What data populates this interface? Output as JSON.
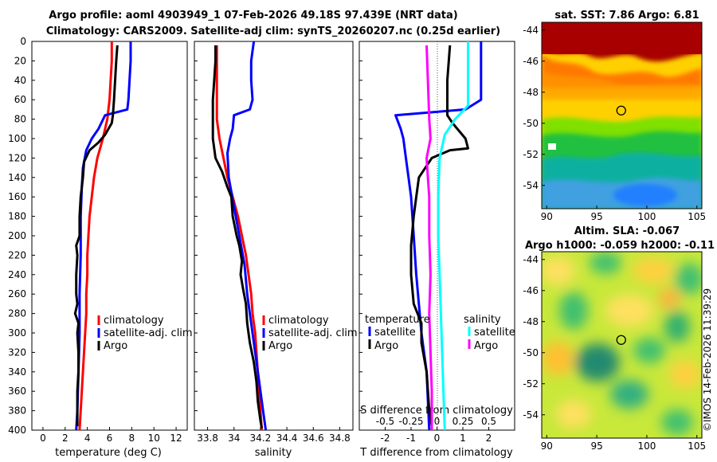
{
  "header": {
    "title_line1": "Argo profile: aoml 4903949_1 07-Feb-2026 49.18S 97.439E (NRT data)",
    "title_line2": "Climatology: CARS2009. Satellite-adj clim: synTS_20260207.nc (0.25d earlier)"
  },
  "credit": "©IMOS 14-Feb-2026 11:39:29",
  "colors": {
    "climatology": "#ff0000",
    "satellite": "#0000ff",
    "argo": "#000000",
    "sal_sat": "#00ffff",
    "sal_argo": "#ff00ff"
  },
  "chart_data": [
    {
      "type": "line",
      "title": "",
      "xlabel": "temperature (deg C)",
      "ylabel": "",
      "xlim": [
        -1,
        13
      ],
      "ylim": [
        400,
        0
      ],
      "xticks": [
        "0",
        "2",
        "4",
        "6",
        "8",
        "10",
        "12"
      ],
      "yticks": [
        "0",
        "20",
        "40",
        "60",
        "80",
        "100",
        "120",
        "140",
        "160",
        "180",
        "200",
        "220",
        "240",
        "260",
        "280",
        "300",
        "320",
        "340",
        "360",
        "380",
        "400"
      ],
      "legend": [
        "climatology",
        "satellite-adj. clim",
        "Argo"
      ],
      "series": [
        {
          "name": "climatology",
          "color": "#ff0000",
          "points": [
            [
              6.2,
              0
            ],
            [
              6.2,
              20
            ],
            [
              6.1,
              40
            ],
            [
              6.0,
              60
            ],
            [
              5.8,
              80
            ],
            [
              5.4,
              100
            ],
            [
              4.9,
              120
            ],
            [
              4.6,
              140
            ],
            [
              4.4,
              160
            ],
            [
              4.2,
              180
            ],
            [
              4.1,
              200
            ],
            [
              4.0,
              220
            ],
            [
              4.0,
              240
            ],
            [
              3.9,
              260
            ],
            [
              3.9,
              280
            ],
            [
              3.8,
              300
            ],
            [
              3.7,
              320
            ],
            [
              3.6,
              340
            ],
            [
              3.5,
              360
            ],
            [
              3.4,
              380
            ],
            [
              3.3,
              400
            ]
          ]
        },
        {
          "name": "satellite-adj. clim",
          "color": "#0000ff",
          "points": [
            [
              7.9,
              0
            ],
            [
              7.9,
              20
            ],
            [
              7.8,
              40
            ],
            [
              7.7,
              60
            ],
            [
              7.6,
              70
            ],
            [
              5.6,
              76
            ],
            [
              5.0,
              90
            ],
            [
              4.4,
              100
            ],
            [
              3.9,
              112
            ],
            [
              3.6,
              130
            ],
            [
              3.5,
              150
            ],
            [
              3.4,
              180
            ],
            [
              3.4,
              220
            ],
            [
              3.3,
              260
            ],
            [
              3.3,
              300
            ],
            [
              3.2,
              340
            ],
            [
              3.1,
              380
            ],
            [
              3.0,
              400
            ]
          ]
        },
        {
          "name": "Argo",
          "color": "#000000",
          "points": [
            [
              6.7,
              4
            ],
            [
              6.6,
              20
            ],
            [
              6.5,
              40
            ],
            [
              6.4,
              60
            ],
            [
              6.3,
              76
            ],
            [
              6.2,
              84
            ],
            [
              5.6,
              96
            ],
            [
              5.0,
              104
            ],
            [
              4.2,
              112
            ],
            [
              3.7,
              124
            ],
            [
              3.6,
              140
            ],
            [
              3.4,
              160
            ],
            [
              3.3,
              180
            ],
            [
              3.3,
              200
            ],
            [
              3.0,
              210
            ],
            [
              3.1,
              220
            ],
            [
              3.0,
              240
            ],
            [
              3.0,
              260
            ],
            [
              3.1,
              270
            ],
            [
              2.9,
              280
            ],
            [
              3.2,
              290
            ],
            [
              3.1,
              300
            ],
            [
              3.2,
              320
            ],
            [
              3.2,
              340
            ],
            [
              3.1,
              360
            ],
            [
              3.1,
              380
            ],
            [
              3.1,
              396
            ]
          ]
        }
      ]
    },
    {
      "type": "line",
      "title": "",
      "xlabel": "salinity",
      "ylabel": "",
      "xlim": [
        33.7,
        34.9
      ],
      "ylim": [
        400,
        0
      ],
      "xticks": [
        "33.8",
        "34",
        "34.2",
        "34.4",
        "34.6",
        "34.8"
      ],
      "legend": [
        "climatology",
        "satellite-adj. clim",
        "Argo"
      ],
      "series": [
        {
          "name": "climatology",
          "color": "#ff0000",
          "points": [
            [
              33.87,
              4
            ],
            [
              33.87,
              40
            ],
            [
              33.87,
              80
            ],
            [
              33.89,
              100
            ],
            [
              33.92,
              120
            ],
            [
              33.95,
              140
            ],
            [
              33.99,
              160
            ],
            [
              34.03,
              180
            ],
            [
              34.06,
              200
            ],
            [
              34.09,
              220
            ],
            [
              34.11,
              240
            ],
            [
              34.13,
              260
            ],
            [
              34.14,
              280
            ],
            [
              34.16,
              300
            ],
            [
              34.17,
              320
            ],
            [
              34.18,
              340
            ],
            [
              34.19,
              360
            ],
            [
              34.2,
              380
            ],
            [
              34.21,
              400
            ]
          ]
        },
        {
          "name": "satellite-adj. clim",
          "color": "#0000ff",
          "points": [
            [
              34.15,
              0
            ],
            [
              34.13,
              20
            ],
            [
              34.13,
              40
            ],
            [
              34.14,
              60
            ],
            [
              34.12,
              70
            ],
            [
              34.0,
              76
            ],
            [
              33.99,
              90
            ],
            [
              33.97,
              100
            ],
            [
              33.95,
              115
            ],
            [
              33.96,
              140
            ],
            [
              34.0,
              170
            ],
            [
              34.04,
              200
            ],
            [
              34.08,
              230
            ],
            [
              34.1,
              260
            ],
            [
              34.13,
              290
            ],
            [
              34.16,
              320
            ],
            [
              34.19,
              350
            ],
            [
              34.22,
              380
            ],
            [
              34.24,
              400
            ]
          ]
        },
        {
          "name": "Argo",
          "color": "#000000",
          "points": [
            [
              33.86,
              4
            ],
            [
              33.86,
              20
            ],
            [
              33.85,
              40
            ],
            [
              33.84,
              60
            ],
            [
              33.84,
              80
            ],
            [
              33.84,
              100
            ],
            [
              33.86,
              120
            ],
            [
              33.91,
              134
            ],
            [
              33.95,
              150
            ],
            [
              33.98,
              160
            ],
            [
              33.99,
              180
            ],
            [
              34.02,
              200
            ],
            [
              34.04,
              210
            ],
            [
              34.06,
              226
            ],
            [
              34.05,
              240
            ],
            [
              34.07,
              256
            ],
            [
              34.09,
              270
            ],
            [
              34.1,
              290
            ],
            [
              34.12,
              310
            ],
            [
              34.15,
              330
            ],
            [
              34.17,
              350
            ],
            [
              34.18,
              370
            ],
            [
              34.2,
              390
            ],
            [
              34.21,
              398
            ]
          ]
        }
      ]
    },
    {
      "type": "line",
      "title": "",
      "xlabel": "T difference from climatology",
      "xlabel2": "S difference from climatology",
      "ylabel": "",
      "xlim": [
        -3,
        3
      ],
      "xticks": [
        "-2",
        "-1",
        "0",
        "1",
        "2"
      ],
      "xticks2": [
        "-0.5",
        "-0.25",
        "0",
        "0.25",
        "0.5"
      ],
      "legend_temp_title": "temperature",
      "legend_sal_title": "salinity",
      "legend": [
        "satellite",
        "Argo",
        "satellite",
        "Argo"
      ],
      "series": [
        {
          "name": "T satellite",
          "color": "#0000ff",
          "points": [
            [
              1.7,
              0
            ],
            [
              1.7,
              20
            ],
            [
              1.7,
              40
            ],
            [
              1.7,
              60
            ],
            [
              1.1,
              70
            ],
            [
              -1.6,
              76
            ],
            [
              -1.4,
              90
            ],
            [
              -1.3,
              100
            ],
            [
              -1.2,
              120
            ],
            [
              -1.1,
              140
            ],
            [
              -1.0,
              160
            ],
            [
              -0.9,
              200
            ],
            [
              -0.8,
              240
            ],
            [
              -0.6,
              300
            ],
            [
              -0.4,
              340
            ],
            [
              -0.3,
              400
            ]
          ]
        },
        {
          "name": "T Argo",
          "color": "#000000",
          "points": [
            [
              0.5,
              4
            ],
            [
              0.4,
              40
            ],
            [
              0.4,
              76
            ],
            [
              0.6,
              84
            ],
            [
              1.1,
              100
            ],
            [
              1.2,
              110
            ],
            [
              0.5,
              112
            ],
            [
              -0.2,
              120
            ],
            [
              -0.7,
              140
            ],
            [
              -0.8,
              160
            ],
            [
              -0.9,
              180
            ],
            [
              -1.0,
              210
            ],
            [
              -1.0,
              240
            ],
            [
              -0.9,
              270
            ],
            [
              -0.6,
              290
            ],
            [
              -0.6,
              310
            ],
            [
              -0.4,
              340
            ],
            [
              -0.3,
              380
            ],
            [
              -0.2,
              396
            ]
          ]
        },
        {
          "name": "S satellite",
          "color": "#00ffff",
          "points": [
            [
              1.2,
              0
            ],
            [
              1.2,
              40
            ],
            [
              1.2,
              66
            ],
            [
              0.7,
              80
            ],
            [
              0.3,
              96
            ],
            [
              0.1,
              120
            ],
            [
              0.05,
              160
            ],
            [
              0.05,
              200
            ],
            [
              0.1,
              240
            ],
            [
              0.15,
              280
            ],
            [
              0.2,
              320
            ],
            [
              0.25,
              360
            ],
            [
              0.3,
              400
            ]
          ]
        },
        {
          "name": "S Argo",
          "color": "#ff00ff",
          "points": [
            [
              -0.4,
              4
            ],
            [
              -0.35,
              40
            ],
            [
              -0.3,
              80
            ],
            [
              -0.25,
              100
            ],
            [
              -0.4,
              120
            ],
            [
              -0.35,
              140
            ],
            [
              -0.3,
              160
            ],
            [
              -0.3,
              200
            ],
            [
              -0.25,
              240
            ],
            [
              -0.3,
              280
            ],
            [
              -0.25,
              320
            ],
            [
              -0.2,
              360
            ],
            [
              -0.2,
              400
            ]
          ]
        }
      ]
    },
    {
      "type": "heatmap",
      "title": "sat. SST: 7.86 Argo: 6.81",
      "xlim": [
        89.5,
        105.5
      ],
      "ylim": [
        -55.5,
        -43.5
      ],
      "xticks": [
        "90",
        "95",
        "100",
        "105"
      ],
      "yticks": [
        "-44",
        "-46",
        "-48",
        "-50",
        "-52",
        "-54"
      ],
      "marker": {
        "lon": 97.44,
        "lat": -49.18
      }
    },
    {
      "type": "heatmap",
      "title_line1": "Altim. SLA: -0.067",
      "title_line2": "Argo h1000: -0.059 h2000: -0.11",
      "xlim": [
        89.5,
        105.5
      ],
      "ylim": [
        -55.5,
        -43.5
      ],
      "xticks": [
        "90",
        "95",
        "100",
        "105"
      ],
      "yticks": [
        "-44",
        "-46",
        "-48",
        "-50",
        "-52",
        "-54"
      ],
      "marker": {
        "lon": 97.44,
        "lat": -49.18
      }
    }
  ]
}
